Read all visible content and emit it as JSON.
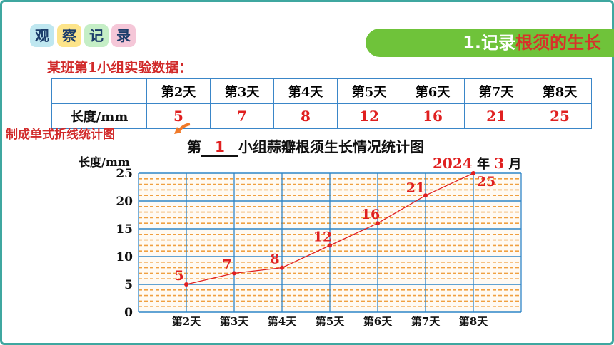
{
  "header": {
    "badge_chars": [
      "观",
      "察",
      "记",
      "录"
    ],
    "ribbon_num": "1.",
    "ribbon_white": "记录",
    "ribbon_red": "根须的生长"
  },
  "subtitle": "某班第1小组实验数据：",
  "table": {
    "row_label_1": "",
    "row_label_2": "长度/mm",
    "days": [
      "第2天",
      "第3天",
      "第4天",
      "第5天",
      "第6天",
      "第7天",
      "第8天"
    ],
    "values": [
      "5",
      "7",
      "8",
      "12",
      "16",
      "21",
      "25"
    ]
  },
  "callout": "制成单式折线统计图",
  "chart_data": {
    "type": "line",
    "title_prefix": "第",
    "title_group": "1",
    "title_suffix": "小组蒜瓣根须生长情况统计图",
    "ylabel": "长度/mm",
    "date_year": "2024",
    "date_year_unit": "年",
    "date_month": "3",
    "date_month_unit": "月",
    "categories": [
      "第2天",
      "第3天",
      "第4天",
      "第5天",
      "第6天",
      "第7天",
      "第8天"
    ],
    "values": [
      5,
      7,
      8,
      12,
      16,
      21,
      25
    ],
    "ylim": [
      0,
      25
    ],
    "yticks": [
      "0",
      "5",
      "10",
      "15",
      "20",
      "25"
    ],
    "grid": true,
    "colors": {
      "line": "#e02020",
      "grid_dash": "#f0a040",
      "grid_major": "#2f86c8"
    }
  }
}
